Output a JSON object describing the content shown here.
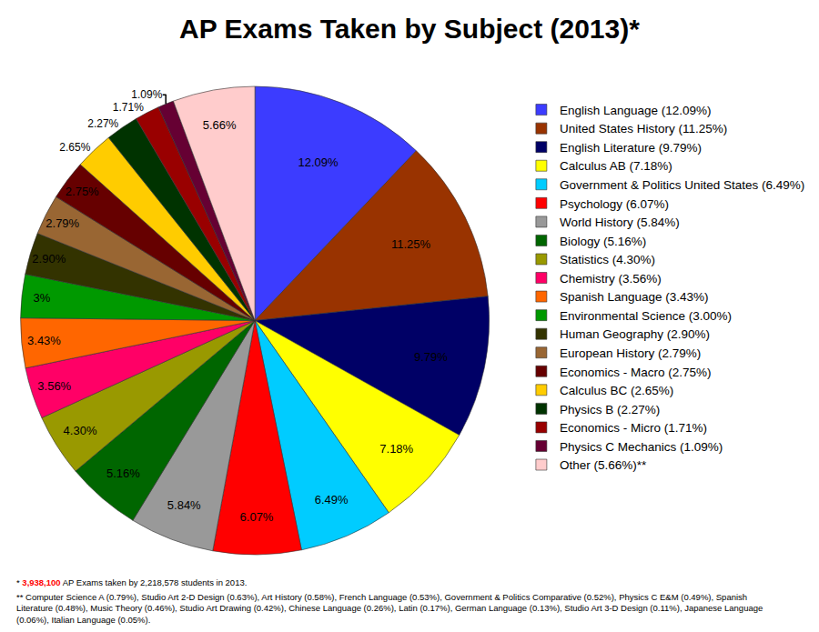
{
  "chart_data": {
    "type": "pie",
    "title": "AP Exams Taken by Subject (2013)*",
    "categories": [
      "English Language (12.09%)",
      "United States History (11.25%)",
      "English Literature (9.79%)",
      "Calculus AB (7.18%)",
      "Government & Politics United States (6.49%)",
      "Psychology (6.07%)",
      "World History (5.84%)",
      "Biology (5.16%)",
      "Statistics (4.30%)",
      "Chemistry (3.56%)",
      "Spanish Language (3.43%)",
      "Environmental Science (3.00%)",
      "Human Geography (2.90%)",
      "European History (2.79%)",
      "Economics - Macro (2.75%)",
      "Calculus BC (2.65%)",
      "Physics B (2.27%)",
      "Economics - Micro (1.71%)",
      "Physics C Mechanics (1.09%)",
      "Other (5.66%)**"
    ],
    "values": [
      12.09,
      11.25,
      9.79,
      7.18,
      6.49,
      6.07,
      5.84,
      5.16,
      4.3,
      3.56,
      3.43,
      3.0,
      2.9,
      2.79,
      2.75,
      2.65,
      2.27,
      1.71,
      1.09,
      5.66
    ],
    "value_labels": [
      "12.09%",
      "11.25%",
      "9.79%",
      "7.18%",
      "6.49%",
      "6.07%",
      "5.84%",
      "5.16%",
      "4.30%",
      "3.56%",
      "3.43%",
      "3%",
      "2.90%",
      "2.79%",
      "2.75%",
      "2.65%",
      "2.27%",
      "1.71%",
      "1.09%",
      "5.66%"
    ],
    "colors": [
      "#3c3cff",
      "#993300",
      "#000066",
      "#ffff00",
      "#00ccff",
      "#ff0000",
      "#999999",
      "#006600",
      "#999900",
      "#ff0066",
      "#ff6600",
      "#009900",
      "#333300",
      "#996633",
      "#660000",
      "#ffcc00",
      "#003300",
      "#990000",
      "#660033",
      "#ffcccc"
    ],
    "data_labels": true,
    "legend": "right",
    "annotations": [
      "* 3,938,100 AP Exams taken by 2,218,578 students in 2013.",
      "** Computer Science A (0.79%), Studio Art 2-D Design (0.63%), Art History (0.58%), French Language (0.53%), Government & Politics Comparative (0.52%), Physics C E&M (0.49%), Spanish Literature (0.48%), Music Theory (0.46%), Studio Art Drawing (0.42%), Chinese Language (0.26%), Latin (0.17%), German Language (0.13%), Studio Art 3-D Design (0.11%), Japanese Language (0.06%), Italian Language (0.05%)."
    ]
  }
}
